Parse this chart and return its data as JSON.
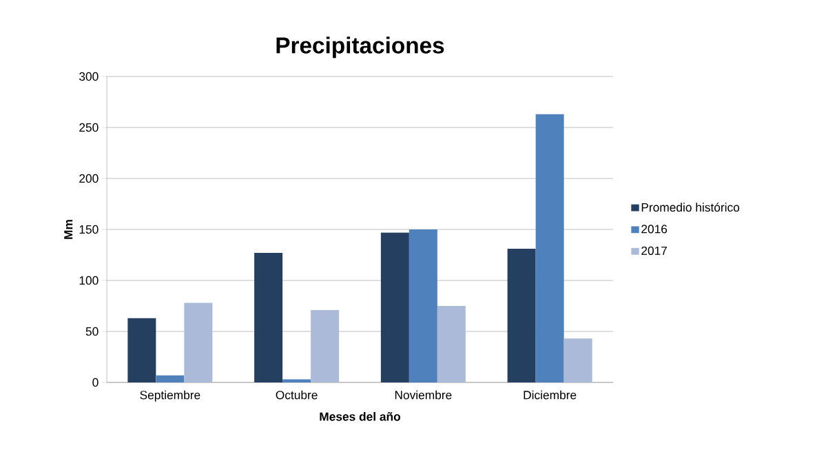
{
  "chart_data": {
    "type": "bar",
    "title": "Precipitaciones",
    "xlabel": "Meses del año",
    "ylabel": "Mm",
    "categories": [
      "Septiembre",
      "Octubre",
      "Noviembre",
      "Diciembre"
    ],
    "series": [
      {
        "name": "Promedio histórico",
        "color": "#243f60",
        "values": [
          63,
          127,
          147,
          131
        ]
      },
      {
        "name": "2016",
        "color": "#4f81bd",
        "values": [
          7,
          3,
          150,
          263
        ]
      },
      {
        "name": "2017",
        "color": "#abbad9",
        "values": [
          78,
          71,
          75,
          43
        ]
      }
    ],
    "ylim": [
      0,
      300
    ],
    "yticks": [
      0,
      50,
      100,
      150,
      200,
      250,
      300
    ],
    "grid": "y",
    "legend": "right"
  }
}
